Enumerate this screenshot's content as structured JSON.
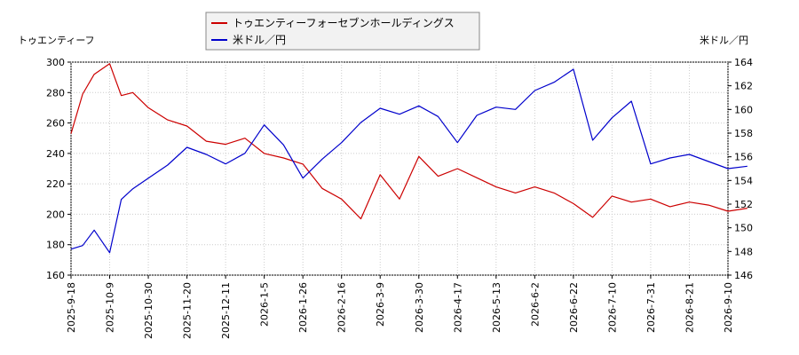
{
  "chart_data": {
    "type": "line",
    "legend": [
      "トゥエンティーフォーセブンホールディングス",
      "米ドル／円"
    ],
    "left_axis_label": "トゥエンティーフ",
    "right_axis_label": "米ドル／円",
    "y_left": {
      "min": 160,
      "max": 300,
      "ticks": [
        160,
        180,
        200,
        220,
        240,
        260,
        280,
        300
      ]
    },
    "y_right": {
      "min": 146,
      "max": 164,
      "ticks": [
        146,
        148,
        150,
        152,
        154,
        156,
        158,
        160,
        162,
        164
      ]
    },
    "x_ticks": [
      "2025-9-18",
      "2025-10-9",
      "2025-10-30",
      "2025-11-20",
      "2025-12-11",
      "2026-1-5",
      "2026-1-26",
      "2026-2-16",
      "2026-3-9",
      "2026-3-30",
      "2026-4-17",
      "2026-5-13",
      "2026-6-2",
      "2026-6-22",
      "2026-7-10",
      "2026-7-31",
      "2026-8-21",
      "2026-9-10"
    ],
    "series": [
      {
        "name": "トゥエンティーフォーセブンホールディングス",
        "color": "#cc0000",
        "axis": "left",
        "x": [
          0,
          0.3,
          0.6,
          1,
          1.3,
          1.6,
          2,
          2.5,
          3,
          3.5,
          4,
          4.5,
          5,
          5.5,
          6,
          6.5,
          7,
          7.5,
          8,
          8.5,
          9,
          9.5,
          10,
          10.5,
          11,
          11.5,
          12,
          12.5,
          13,
          13.5,
          14,
          14.5,
          15,
          15.5,
          16,
          16.5,
          17,
          17.5
        ],
        "values": [
          253,
          279,
          292,
          299,
          278,
          280,
          270,
          262,
          258,
          248,
          246,
          250,
          240,
          237,
          233,
          217,
          210,
          197,
          226,
          210,
          238,
          225,
          230,
          224,
          218,
          214,
          218,
          214,
          207,
          198,
          212,
          208,
          210,
          205,
          208,
          206,
          202,
          204
        ]
      },
      {
        "name": "米ドル／円",
        "color": "#0000cc",
        "axis": "right",
        "x": [
          0,
          0.3,
          0.6,
          1,
          1.3,
          1.6,
          2,
          2.5,
          3,
          3.5,
          4,
          4.5,
          5,
          5.5,
          6,
          6.5,
          7,
          7.5,
          8,
          8.5,
          9,
          9.5,
          10,
          10.5,
          11,
          11.5,
          12,
          12.5,
          13,
          13.5,
          14,
          14.5,
          15,
          15.5,
          16,
          16.5,
          17,
          17.5
        ],
        "values": [
          148.2,
          148.5,
          149.8,
          147.9,
          152.4,
          153.3,
          154.2,
          155.3,
          156.8,
          156.2,
          155.4,
          156.3,
          158.7,
          157.0,
          154.2,
          155.8,
          157.2,
          158.9,
          160.1,
          159.6,
          160.3,
          159.4,
          157.2,
          159.5,
          160.2,
          160.0,
          161.6,
          162.3,
          163.4,
          157.4,
          159.3,
          160.7,
          155.4,
          155.9,
          156.2,
          155.6,
          155.0,
          155.2
        ]
      }
    ]
  }
}
